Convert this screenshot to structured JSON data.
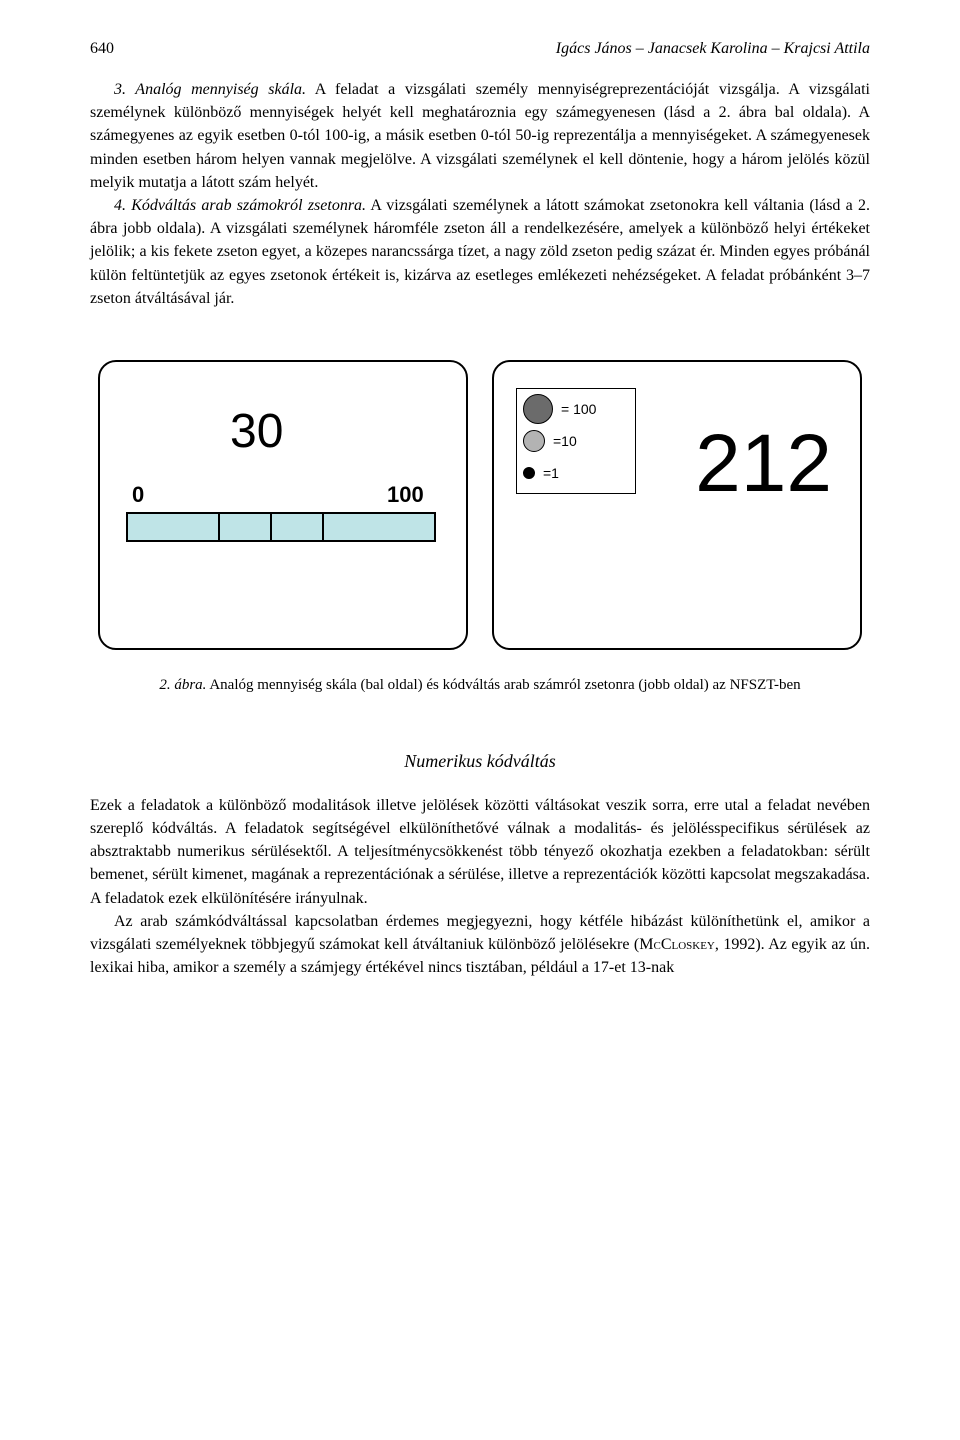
{
  "page_number": "640",
  "authors": "Igács János – Janacsek Karolina – Krajcsi Attila",
  "para1_full": "3. Analóg mennyiség skála. A feladat a vizsgálati személy mennyiségreprezentációját vizsgálja. A vizsgálati személynek különböző mennyiségek helyét kell meghatároznia egy számegyenesen (lásd a 2. ábra bal oldala). A számegyenes az egyik esetben 0-tól 100-ig, a másik esetben 0-tól 50-ig reprezentálja a mennyiségeket. A számegyenesek minden esetben három helyen vannak megjelölve. A vizsgálati személynek el kell döntenie, hogy a három jelölés közül melyik mutatja a látott szám helyét.",
  "para2_full": "4. Kódváltás arab számokról zsetonra. A vizsgálati személynek a látott számokat zsetonokra kell váltania (lásd a 2. ábra jobb oldala). A vizsgálati személynek háromféle zseton áll a rendelkezésére, amelyek a különböző helyi értékeket jelölik; a kis fekete zseton egyet, a közepes narancssárga tízet, a nagy zöld zseton pedig százat ér. Minden egyes próbánál külön feltüntetjük az egyes zsetonok értékeit is, kizárva az esetleges emlékezeti nehézségeket. A feladat próbánként 3–7 zseton átváltásával jár.",
  "figure": {
    "left": {
      "top_number": "30",
      "scale_min": "0",
      "scale_max": "100",
      "bar_color": "#bfe4e7",
      "segments": [
        30,
        17,
        17,
        36
      ]
    },
    "right": {
      "legend": [
        {
          "size": 30,
          "color": "#6b6b6b",
          "label": "= 100"
        },
        {
          "size": 22,
          "color": "#b3b3b3",
          "label": "=10"
        },
        {
          "size": 12,
          "color": "#000000",
          "label": "=1"
        }
      ],
      "number": "212"
    },
    "caption_lead": "2. ábra.",
    "caption_rest": " Analóg mennyiség skála (bal oldal) és kódváltás arab számról zsetonra (jobb oldal) az NFSZT-ben"
  },
  "section_heading": "Numerikus kódváltás",
  "para3": "Ezek a feladatok a különböző modalitások illetve jelölések közötti váltásokat veszik sorra, erre utal a feladat nevében szereplő kódváltás. A feladatok segítségével elkülöníthetővé válnak a modalitás- és jelölésspecifikus sérülések az absztraktabb numerikus sérülésektől. A teljesítménycsökkenést több tényező okozhatja ezekben a feladatokban: sérült bemenet, sérült kimenet, magának a reprezentációnak a sérülése, illetve a reprezentációk közötti kapcsolat megszakadása. A feladatok ezek elkülönítésére irányulnak.",
  "para4_before_ref": "Az arab számkódváltással kapcsolatban érdemes megjegyezni, hogy kétféle hibázást különíthetünk el, amikor a vizsgálati személyeknek többjegyű számokat kell átváltaniuk különböző jelölésekre (",
  "ref_author": "McCloskey",
  "ref_year": ", 1992). ",
  "para4_after_ref": "Az egyik az ún. lexikai hiba, amikor a személy a számjegy értékével nincs tisztában, például a 17-et 13-nak"
}
